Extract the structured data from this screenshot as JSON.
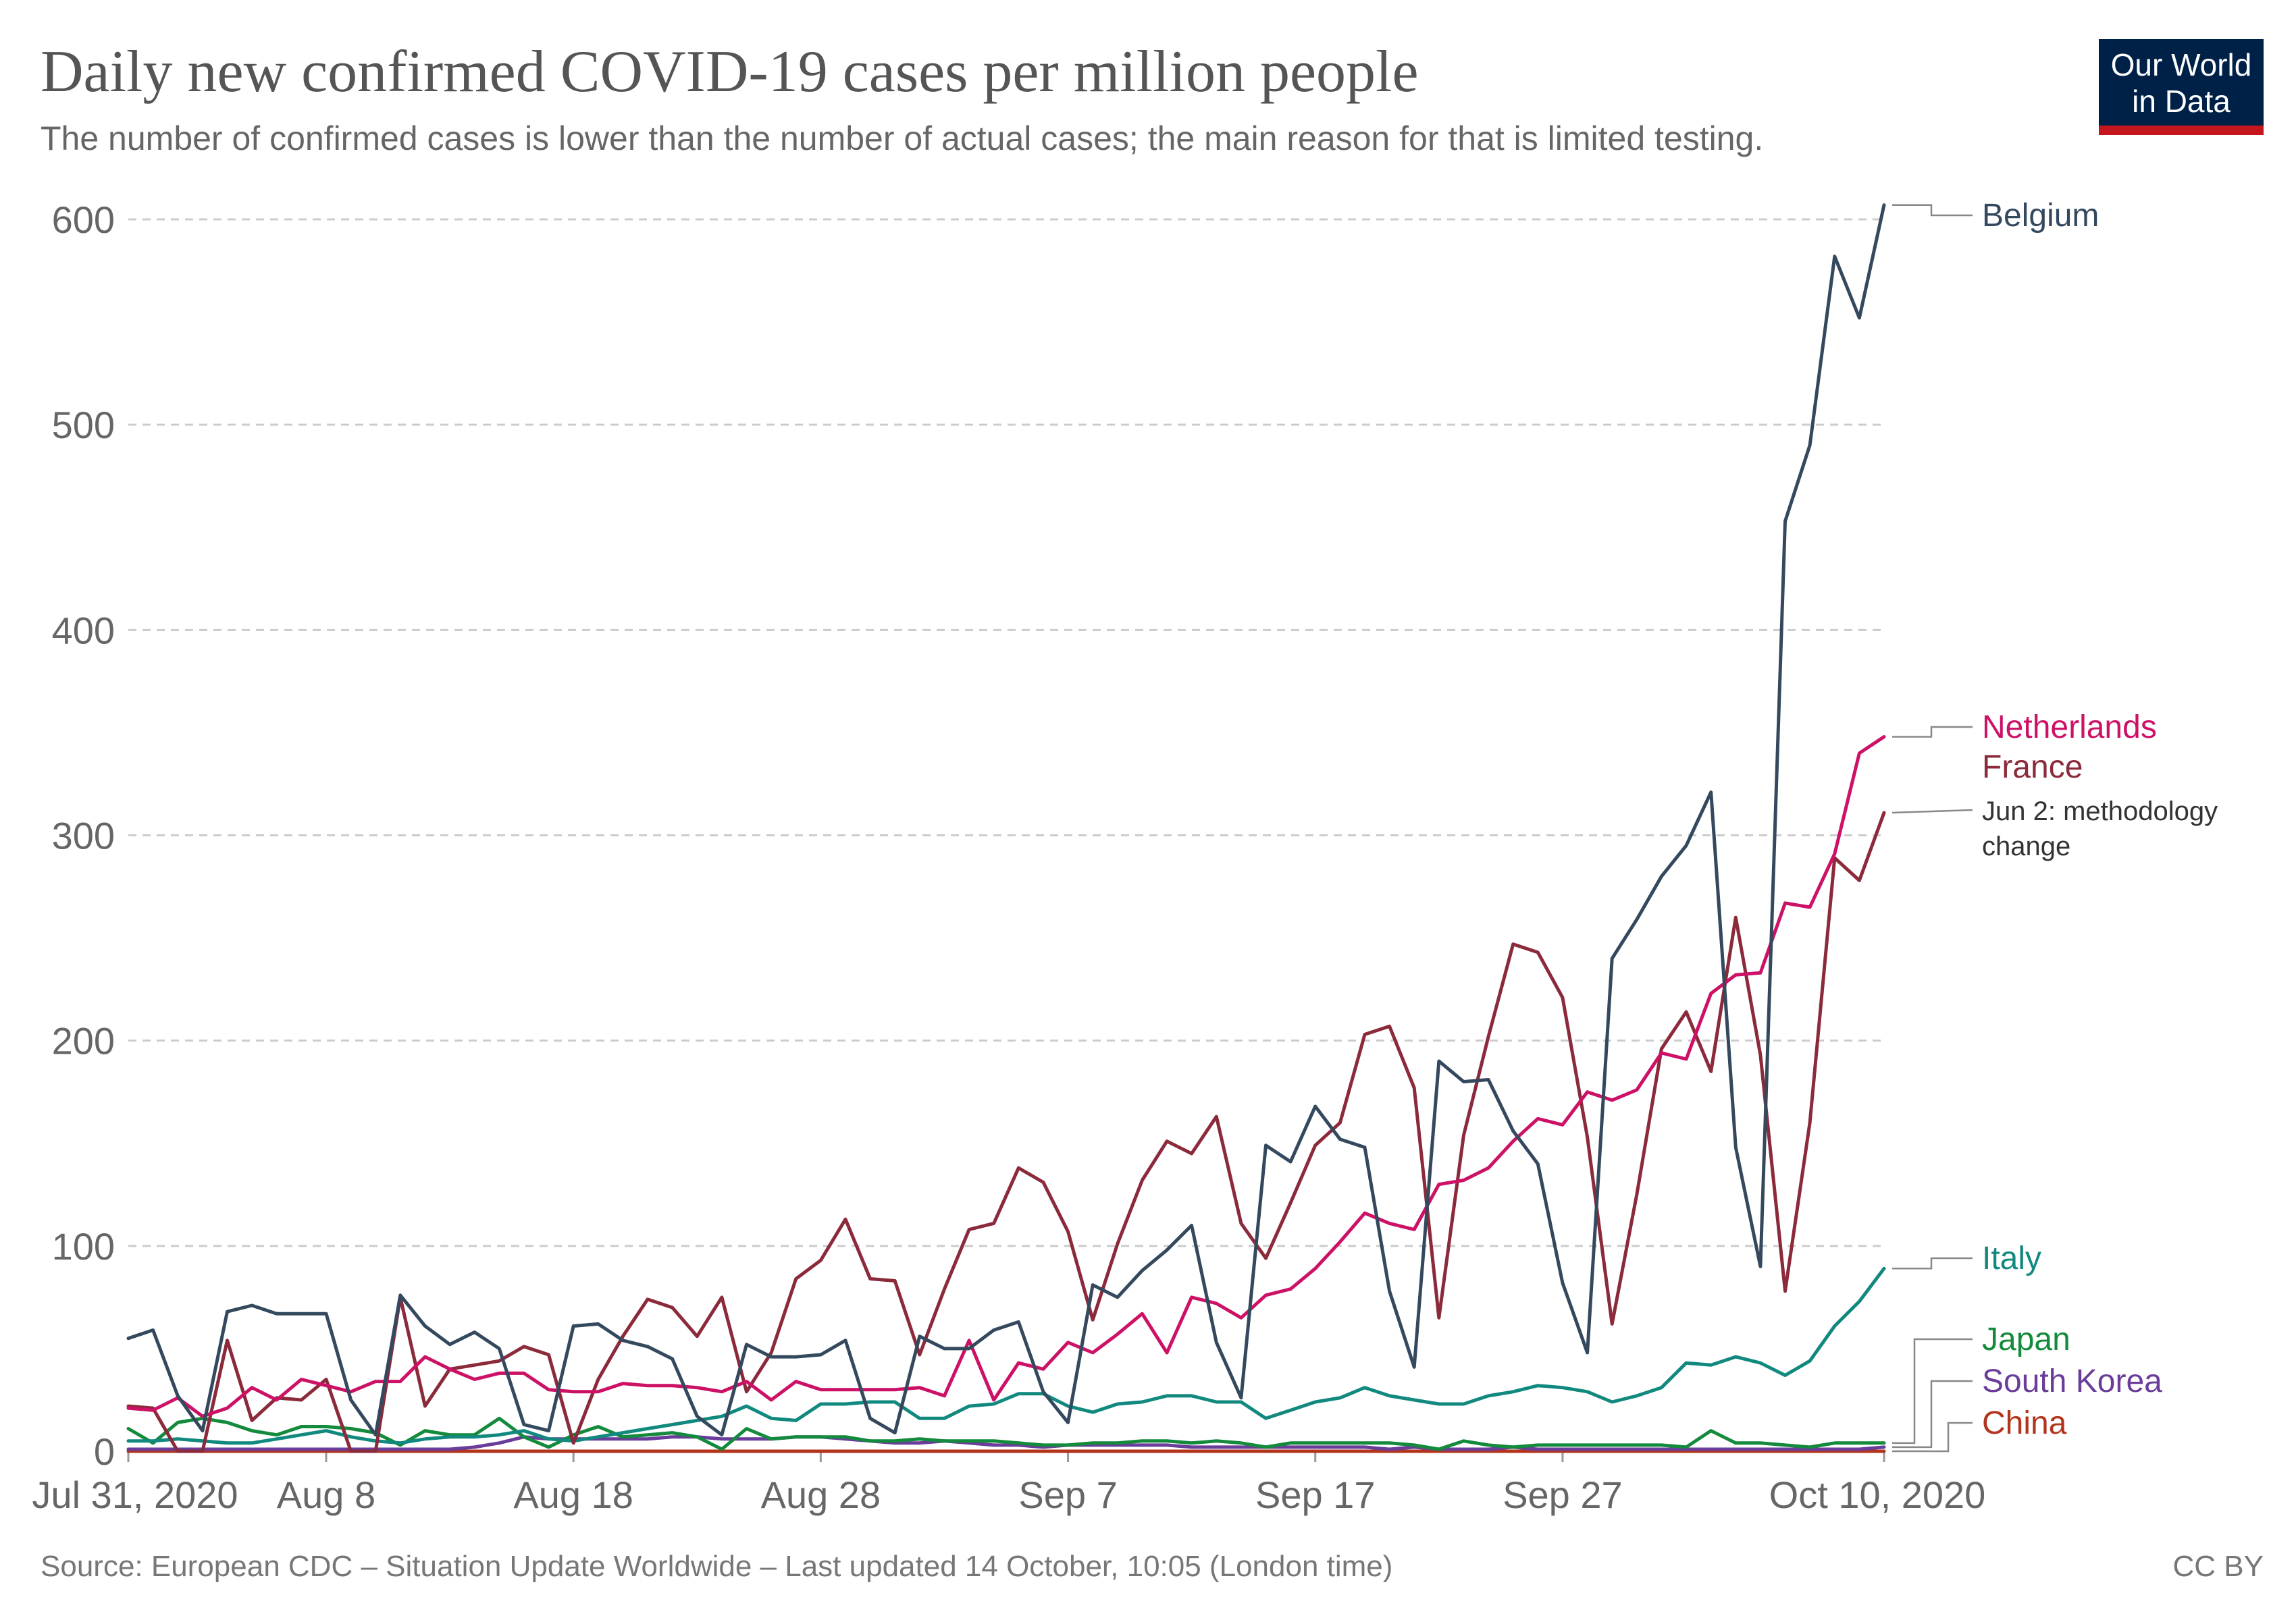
{
  "header": {
    "title": "Daily new confirmed COVID-19 cases per million people",
    "subtitle": "The number of confirmed cases is lower than the number of actual cases; the main reason for that is limited testing.",
    "logo_line1": "Our World",
    "logo_line2": "in Data"
  },
  "footer": {
    "source": "Source: European CDC – Situation Update Worldwide – Last updated 14 October, 10:05 (London time)",
    "license": "CC BY"
  },
  "colors": {
    "logo_bg": "#002147",
    "logo_bar": "#c4161c",
    "Belgium": "#34495e",
    "Netherlands": "#cc1166",
    "France": "#8b2a3a",
    "Italy": "#11897e",
    "Japan": "#148a3c",
    "South Korea": "#6a3d9a",
    "China": "#b3341c"
  },
  "chart_data": {
    "type": "line",
    "title": "Daily new confirmed COVID-19 cases per million people",
    "xlabel": "",
    "ylabel": "",
    "ylim": [
      0,
      600
    ],
    "yticks": [
      0,
      100,
      200,
      300,
      400,
      500,
      600
    ],
    "xlim": [
      0,
      71
    ],
    "x_start": "2020-07-31",
    "x_end": "2020-10-10",
    "xticks": [
      {
        "day": 0,
        "label": "Jul 31, 2020"
      },
      {
        "day": 8,
        "label": "Aug 8"
      },
      {
        "day": 18,
        "label": "Aug 18"
      },
      {
        "day": 28,
        "label": "Aug 28"
      },
      {
        "day": 38,
        "label": "Sep 7"
      },
      {
        "day": 48,
        "label": "Sep 17"
      },
      {
        "day": 58,
        "label": "Sep 27"
      },
      {
        "day": 71,
        "label": "Oct 10, 2020"
      }
    ],
    "grid": true,
    "annotation": "Jun 2: methodology change",
    "series": [
      {
        "name": "Belgium",
        "values": [
          55,
          59,
          27,
          10,
          68,
          71,
          67,
          67,
          67,
          25,
          8,
          76,
          61,
          52,
          58,
          50,
          13,
          10,
          61,
          62,
          54,
          51,
          45,
          17,
          8,
          52,
          46,
          46,
          47,
          54,
          16,
          9,
          56,
          50,
          50,
          59,
          63,
          29,
          14,
          81,
          75,
          88,
          98,
          110,
          53,
          26,
          149,
          141,
          168,
          152,
          148,
          78,
          41,
          190,
          180,
          181,
          156,
          140,
          82,
          48,
          240,
          259,
          280,
          295,
          321,
          148,
          90,
          453,
          490,
          582,
          552,
          607
        ]
      },
      {
        "name": "Netherlands",
        "values": [
          21,
          20,
          26,
          17,
          21,
          31,
          25,
          35,
          32,
          29,
          34,
          34,
          46,
          40,
          35,
          38,
          38,
          30,
          29,
          29,
          33,
          32,
          32,
          31,
          29,
          34,
          25,
          34,
          30,
          30,
          30,
          30,
          31,
          27,
          54,
          25,
          43,
          40,
          53,
          48,
          57,
          67,
          48,
          75,
          72,
          65,
          76,
          79,
          89,
          102,
          116,
          111,
          108,
          130,
          132,
          138,
          151,
          162,
          159,
          175,
          171,
          176,
          194,
          191,
          223,
          232,
          233,
          267,
          265,
          291,
          340,
          348
        ]
      },
      {
        "name": "France",
        "values": [
          22,
          21,
          0,
          0,
          54,
          15,
          26,
          25,
          35,
          0,
          0,
          75,
          22,
          40,
          42,
          44,
          51,
          47,
          4,
          35,
          56,
          74,
          70,
          56,
          75,
          29,
          48,
          84,
          93,
          113,
          84,
          83,
          47,
          79,
          108,
          111,
          138,
          131,
          107,
          64,
          101,
          132,
          151,
          145,
          163,
          111,
          94,
          121,
          149,
          160,
          203,
          207,
          177,
          65,
          154,
          202,
          247,
          243,
          221,
          153,
          62,
          125,
          196,
          214,
          185,
          260,
          193,
          78,
          160,
          289,
          278,
          311
        ]
      },
      {
        "name": "Italy",
        "values": [
          5,
          5,
          6,
          5,
          4,
          4,
          6,
          8,
          10,
          7,
          5,
          4,
          6,
          7,
          7,
          8,
          10,
          6,
          5,
          7,
          9,
          11,
          13,
          15,
          17,
          22,
          16,
          15,
          23,
          23,
          24,
          24,
          16,
          16,
          22,
          23,
          28,
          28,
          22,
          19,
          23,
          24,
          27,
          27,
          24,
          24,
          16,
          20,
          24,
          26,
          31,
          27,
          25,
          23,
          23,
          27,
          29,
          32,
          31,
          29,
          24,
          27,
          31,
          43,
          42,
          46,
          43,
          37,
          44,
          61,
          73,
          89
        ]
      },
      {
        "name": "Japan",
        "values": [
          11,
          4,
          14,
          16,
          14,
          10,
          8,
          12,
          12,
          11,
          9,
          3,
          10,
          8,
          8,
          16,
          7,
          2,
          8,
          12,
          7,
          8,
          9,
          7,
          1,
          11,
          6,
          7,
          7,
          7,
          5,
          5,
          6,
          5,
          5,
          5,
          4,
          3,
          3,
          4,
          4,
          5,
          5,
          4,
          5,
          4,
          2,
          4,
          4,
          4,
          4,
          4,
          3,
          1,
          5,
          3,
          2,
          3,
          3,
          3,
          3,
          3,
          3,
          2,
          10,
          4,
          4,
          3,
          2,
          4,
          4,
          4
        ]
      },
      {
        "name": "South Korea",
        "values": [
          1,
          1,
          1,
          1,
          1,
          1,
          1,
          1,
          1,
          1,
          1,
          1,
          1,
          1,
          2,
          4,
          7,
          6,
          6,
          6,
          6,
          6,
          7,
          7,
          6,
          6,
          6,
          7,
          7,
          6,
          5,
          4,
          4,
          5,
          4,
          3,
          3,
          2,
          3,
          3,
          3,
          3,
          3,
          2,
          2,
          2,
          2,
          2,
          2,
          2,
          2,
          1,
          2,
          1,
          1,
          1,
          2,
          1,
          1,
          1,
          1,
          1,
          1,
          1,
          1,
          1,
          1,
          1,
          1,
          1,
          1,
          2
        ]
      },
      {
        "name": "China",
        "values": [
          0,
          0,
          0,
          0,
          0,
          0,
          0,
          0,
          0,
          0,
          0,
          0,
          0,
          0,
          0,
          0,
          0,
          0,
          0,
          0,
          0,
          0,
          0,
          0,
          0,
          0,
          0,
          0,
          0,
          0,
          0,
          0,
          0,
          0,
          0,
          0,
          0,
          0,
          0,
          0,
          0,
          0,
          0,
          0,
          0,
          0,
          0,
          0,
          0,
          0,
          0,
          0,
          0,
          0,
          0,
          0,
          0,
          0,
          0,
          0,
          0,
          0,
          0,
          0,
          0,
          0,
          0,
          0,
          0,
          0,
          0,
          0
        ]
      }
    ]
  }
}
